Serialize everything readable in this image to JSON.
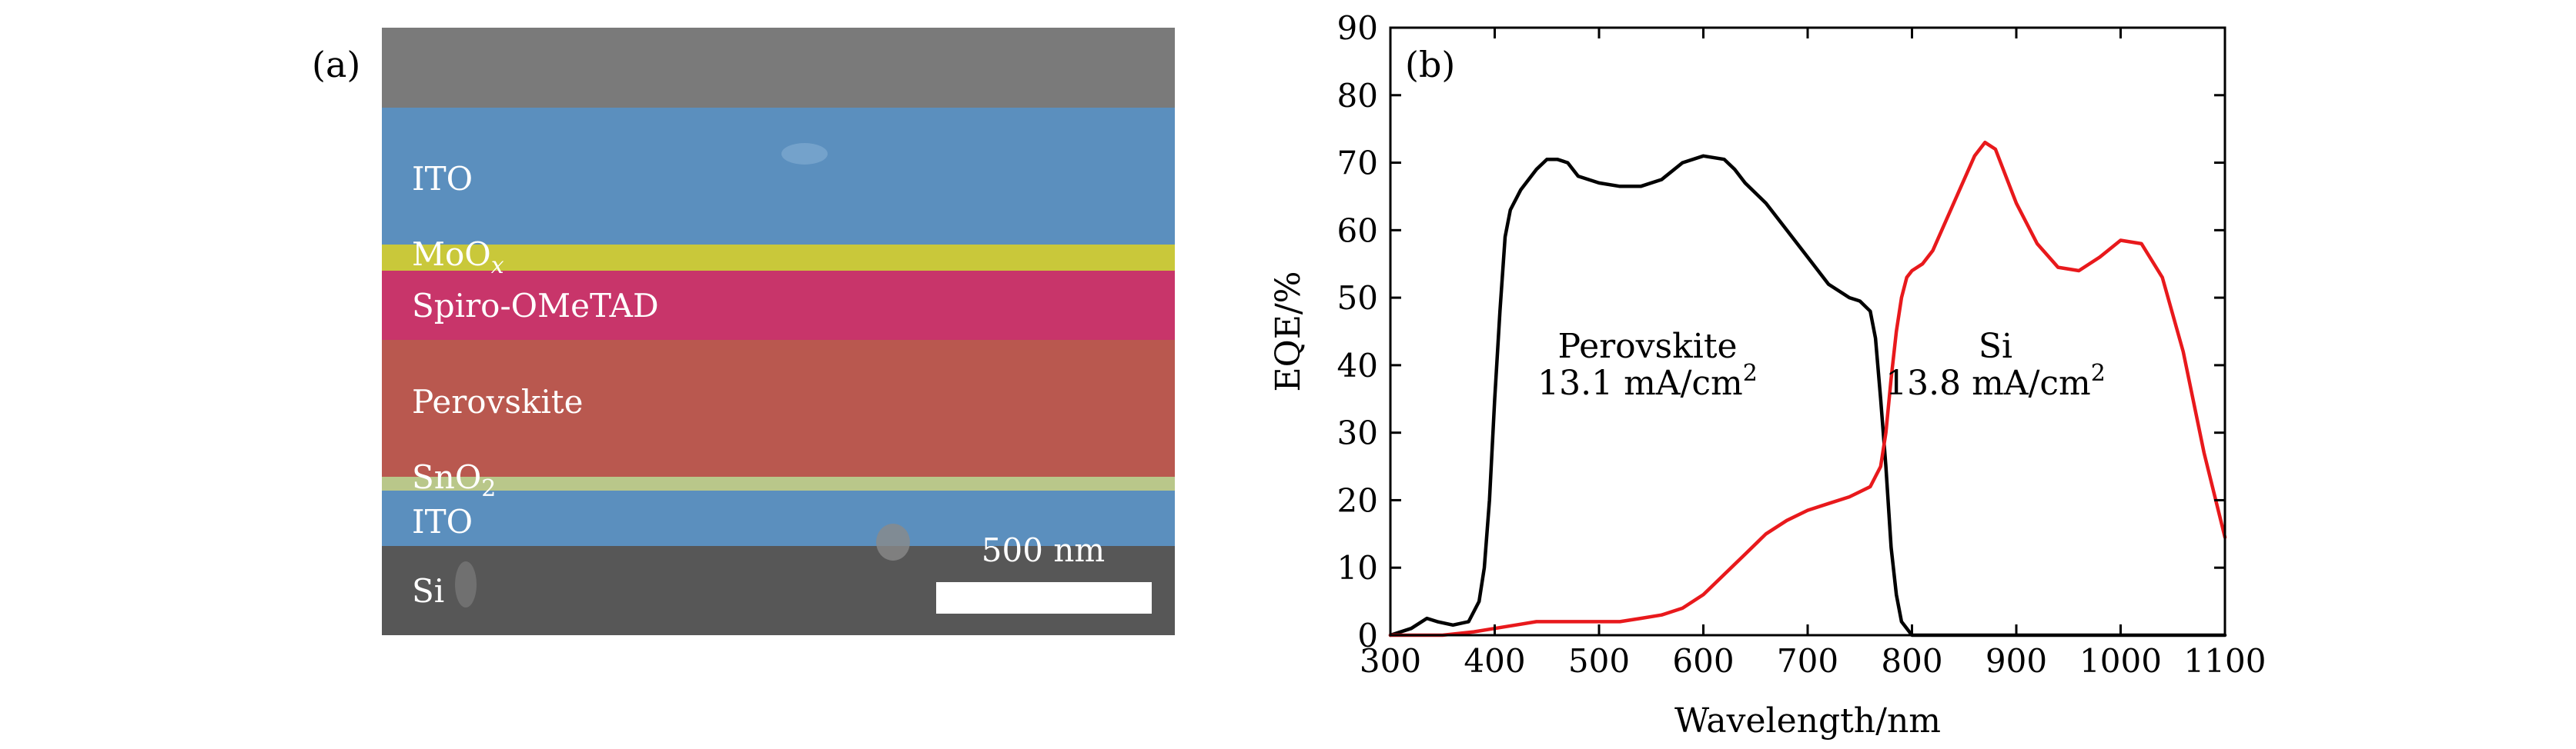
{
  "panel_a": {
    "label": "(a)",
    "layers": [
      {
        "name": "ITO",
        "color": "#5b9bd5"
      },
      {
        "name": "MoO",
        "subscript": "x",
        "color": "#d6d62a"
      },
      {
        "name": "Spiro-OMeTAD",
        "color": "#d4336b"
      },
      {
        "name": "Perovskite",
        "color": "#c25a4e"
      },
      {
        "name": "SnO",
        "subscript": "2",
        "color": "#c4d08a"
      },
      {
        "name": "ITO",
        "color": "#5b9bd5"
      },
      {
        "name": "Si",
        "color": "#4b4b4b"
      }
    ],
    "scale_bar_label": "500 nm"
  },
  "chart_data": {
    "type": "line",
    "panel_label": "(b)",
    "xlabel": "Wavelength/nm",
    "ylabel": "EQE/%",
    "xlim": [
      300,
      1100
    ],
    "ylim": [
      0,
      90
    ],
    "xticks": [
      300,
      400,
      500,
      600,
      700,
      800,
      900,
      1000,
      1100
    ],
    "yticks": [
      0,
      10,
      20,
      30,
      40,
      50,
      60,
      70,
      80,
      90
    ],
    "grid": false,
    "series": [
      {
        "name": "Perovskite",
        "color": "#000000",
        "x": [
          300,
          320,
          335,
          345,
          360,
          375,
          385,
          390,
          395,
          400,
          405,
          410,
          415,
          425,
          440,
          450,
          460,
          470,
          480,
          500,
          520,
          540,
          560,
          580,
          600,
          620,
          630,
          640,
          660,
          680,
          700,
          720,
          740,
          750,
          760,
          765,
          770,
          775,
          780,
          785,
          790,
          800,
          820,
          1100
        ],
        "y": [
          0,
          1,
          2.5,
          2,
          1.5,
          2,
          5,
          10,
          20,
          35,
          48,
          59,
          63,
          66,
          69,
          70.5,
          70.5,
          70,
          68,
          67,
          66.5,
          66.5,
          67.5,
          70,
          71,
          70.5,
          69,
          67,
          64,
          60,
          56,
          52,
          50,
          49.5,
          48,
          44,
          35,
          25,
          13,
          6,
          2,
          0,
          0,
          0
        ]
      },
      {
        "name": "Si",
        "color": "#e8191c",
        "x": [
          300,
          350,
          380,
          400,
          420,
          440,
          480,
          500,
          520,
          540,
          560,
          580,
          600,
          620,
          640,
          660,
          680,
          700,
          720,
          740,
          760,
          770,
          775,
          780,
          785,
          790,
          795,
          800,
          810,
          820,
          840,
          860,
          870,
          880,
          890,
          900,
          920,
          940,
          960,
          980,
          1000,
          1020,
          1040,
          1060,
          1080,
          1100
        ],
        "y": [
          0,
          0,
          0.5,
          1,
          1.5,
          2,
          2,
          2,
          2,
          2.5,
          3,
          4,
          6,
          9,
          12,
          15,
          17,
          18.5,
          19.5,
          20.5,
          22,
          25,
          30,
          38,
          45,
          50,
          53,
          54,
          55,
          57,
          64,
          71,
          73,
          72,
          68,
          64,
          58,
          54.5,
          54,
          56,
          58.5,
          58,
          53,
          42,
          27,
          14.5
        ]
      }
    ],
    "annotations": [
      {
        "series": "Perovskite",
        "line1": "Perovskite",
        "line2": "13.1 mA/cm",
        "superscript": "2"
      },
      {
        "series": "Si",
        "line1": "Si",
        "line2": "13.8 mA/cm",
        "superscript": "2"
      }
    ]
  }
}
